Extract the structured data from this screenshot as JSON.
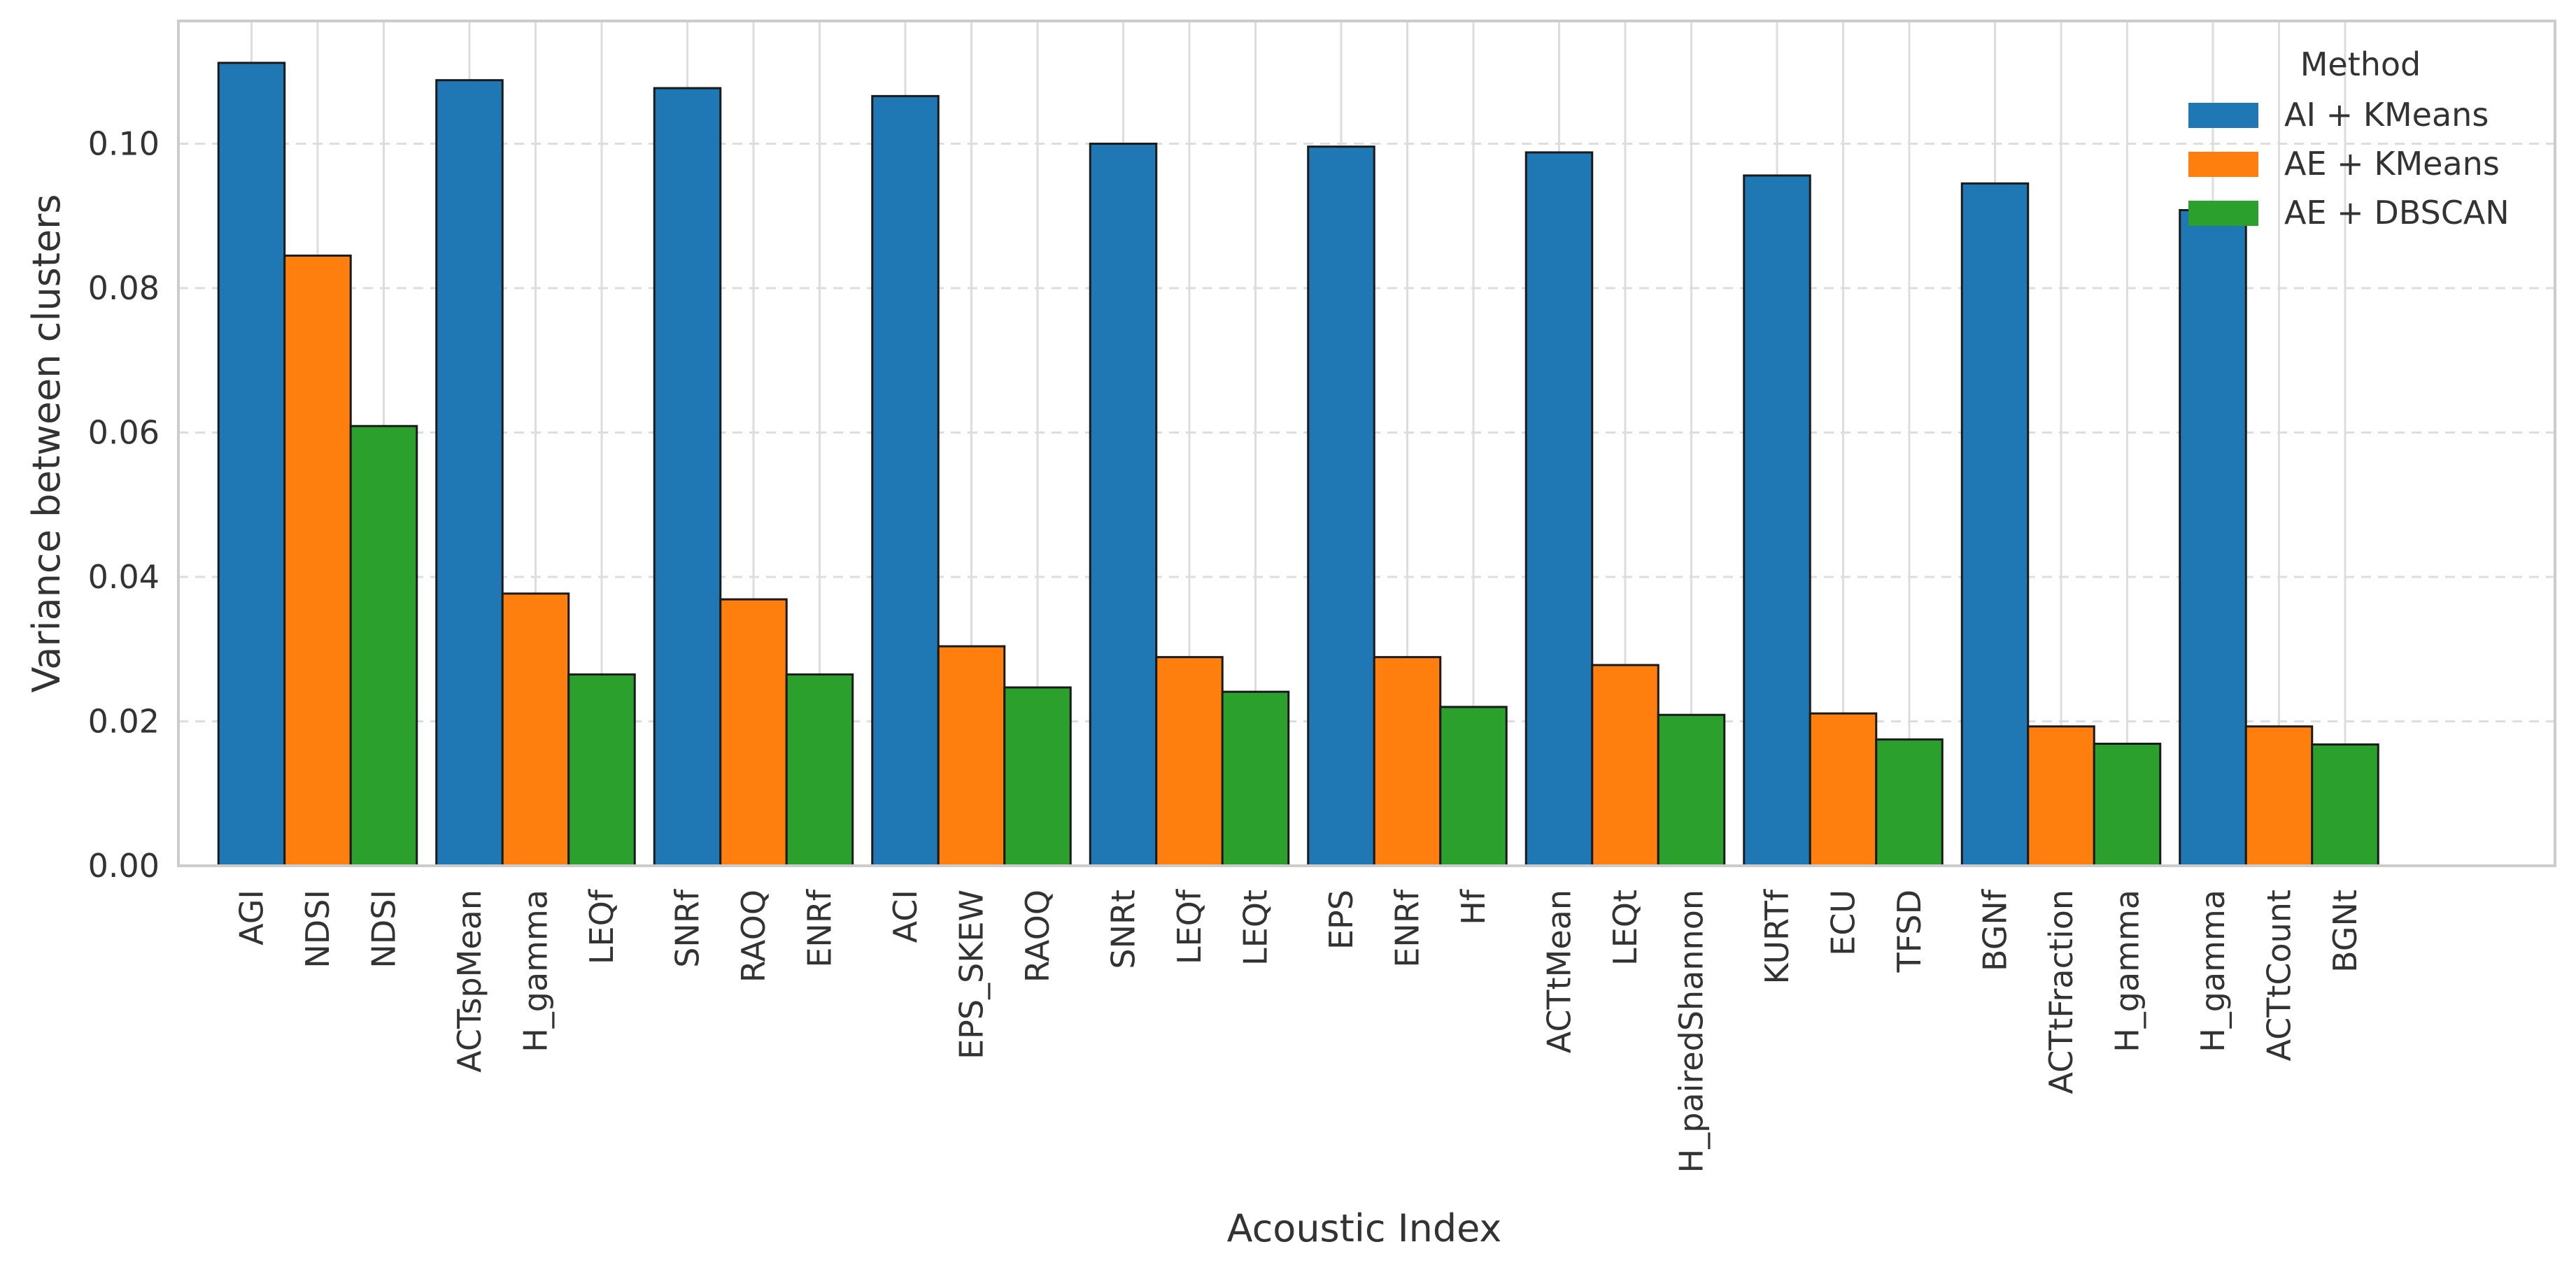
{
  "chart_data": {
    "type": "bar",
    "title": "",
    "xlabel": "Acoustic Index",
    "ylabel": "Variance between clusters",
    "ylim": [
      0,
      0.117
    ],
    "yticks": [
      0.0,
      0.02,
      0.04,
      0.06,
      0.08,
      0.1
    ],
    "ytick_labels": [
      "0.00",
      "0.02",
      "0.04",
      "0.06",
      "0.08",
      "0.10"
    ],
    "grid": true,
    "legend": {
      "title": "Method",
      "placement": "top-right"
    },
    "series": [
      {
        "name": "AI + KMeans",
        "color": "#1f77b4",
        "labels": [
          "AGI",
          "ACTspMean",
          "SNRf",
          "ACI",
          "SNRt",
          "EPS",
          "ACTtMean",
          "KURTf",
          "BGNf",
          "H_gamma"
        ],
        "values": [
          0.1112,
          0.1088,
          0.1077,
          0.1066,
          0.1,
          0.0996,
          0.0988,
          0.0956,
          0.0945,
          0.0908
        ]
      },
      {
        "name": "AE + KMeans",
        "color": "#ff7f0e",
        "labels": [
          "NDSI",
          "H_gamma",
          "RAOQ",
          "EPS_SKEW",
          "LEQf",
          "ENRf",
          "LEQt",
          "ECU",
          "ACTtFraction",
          "ACTtCount"
        ],
        "values": [
          0.0845,
          0.0377,
          0.0369,
          0.0304,
          0.0289,
          0.0289,
          0.0278,
          0.0211,
          0.0193,
          0.0193
        ]
      },
      {
        "name": "AE + DBSCAN",
        "color": "#2ca02c",
        "labels": [
          "NDSI",
          "LEQf",
          "ENRf",
          "RAOQ",
          "LEQt",
          "Hf",
          "H_pairedShannon",
          "TFSD",
          "H_gamma",
          "BGNt"
        ],
        "values": [
          0.0609,
          0.0265,
          0.0265,
          0.0247,
          0.0241,
          0.022,
          0.0209,
          0.0175,
          0.0169,
          0.0168
        ]
      }
    ]
  }
}
